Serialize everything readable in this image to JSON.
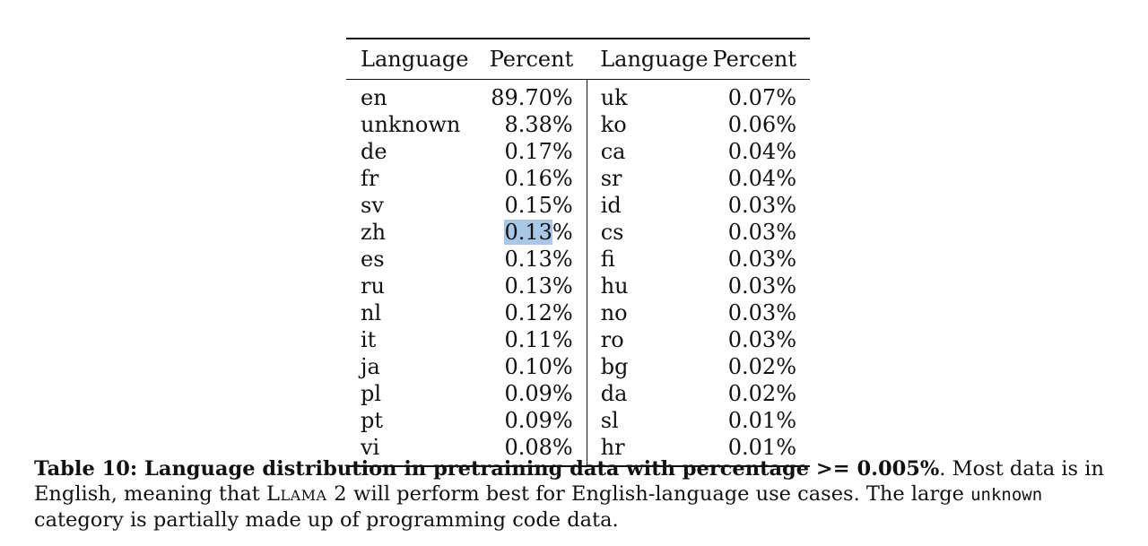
{
  "table": {
    "headers": [
      "Language",
      "Percent",
      "Language",
      "Percent"
    ],
    "rows": [
      [
        "en",
        "89.70%",
        "uk",
        "0.07%"
      ],
      [
        "unknown",
        "8.38%",
        "ko",
        "0.06%"
      ],
      [
        "de",
        "0.17%",
        "ca",
        "0.04%"
      ],
      [
        "fr",
        "0.16%",
        "sr",
        "0.04%"
      ],
      [
        "sv",
        "0.15%",
        "id",
        "0.03%"
      ],
      [
        "zh",
        "0.13%",
        "cs",
        "0.03%"
      ],
      [
        "es",
        "0.13%",
        "fi",
        "0.03%"
      ],
      [
        "ru",
        "0.13%",
        "hu",
        "0.03%"
      ],
      [
        "nl",
        "0.12%",
        "no",
        "0.03%"
      ],
      [
        "it",
        "0.11%",
        "ro",
        "0.03%"
      ],
      [
        "ja",
        "0.10%",
        "bg",
        "0.02%"
      ],
      [
        "pl",
        "0.09%",
        "da",
        "0.02%"
      ],
      [
        "pt",
        "0.09%",
        "sl",
        "0.01%"
      ],
      [
        "vi",
        "0.08%",
        "hr",
        "0.01%"
      ]
    ],
    "highlight": {
      "row": 5,
      "col": 1,
      "selected_text": "0.13",
      "rest_text": "%",
      "color": "#a9c7e6"
    }
  },
  "caption": {
    "bold": "Table 10: Language distribution in pretraining data with percentage >= 0.005%",
    "part1": ". Most data is in English, meaning that ",
    "model_name": "Llama 2",
    "part2": " will perform best for English-language use cases.  The large ",
    "mono_word": "unknown",
    "part3": " category is partially made up of programming code data."
  }
}
